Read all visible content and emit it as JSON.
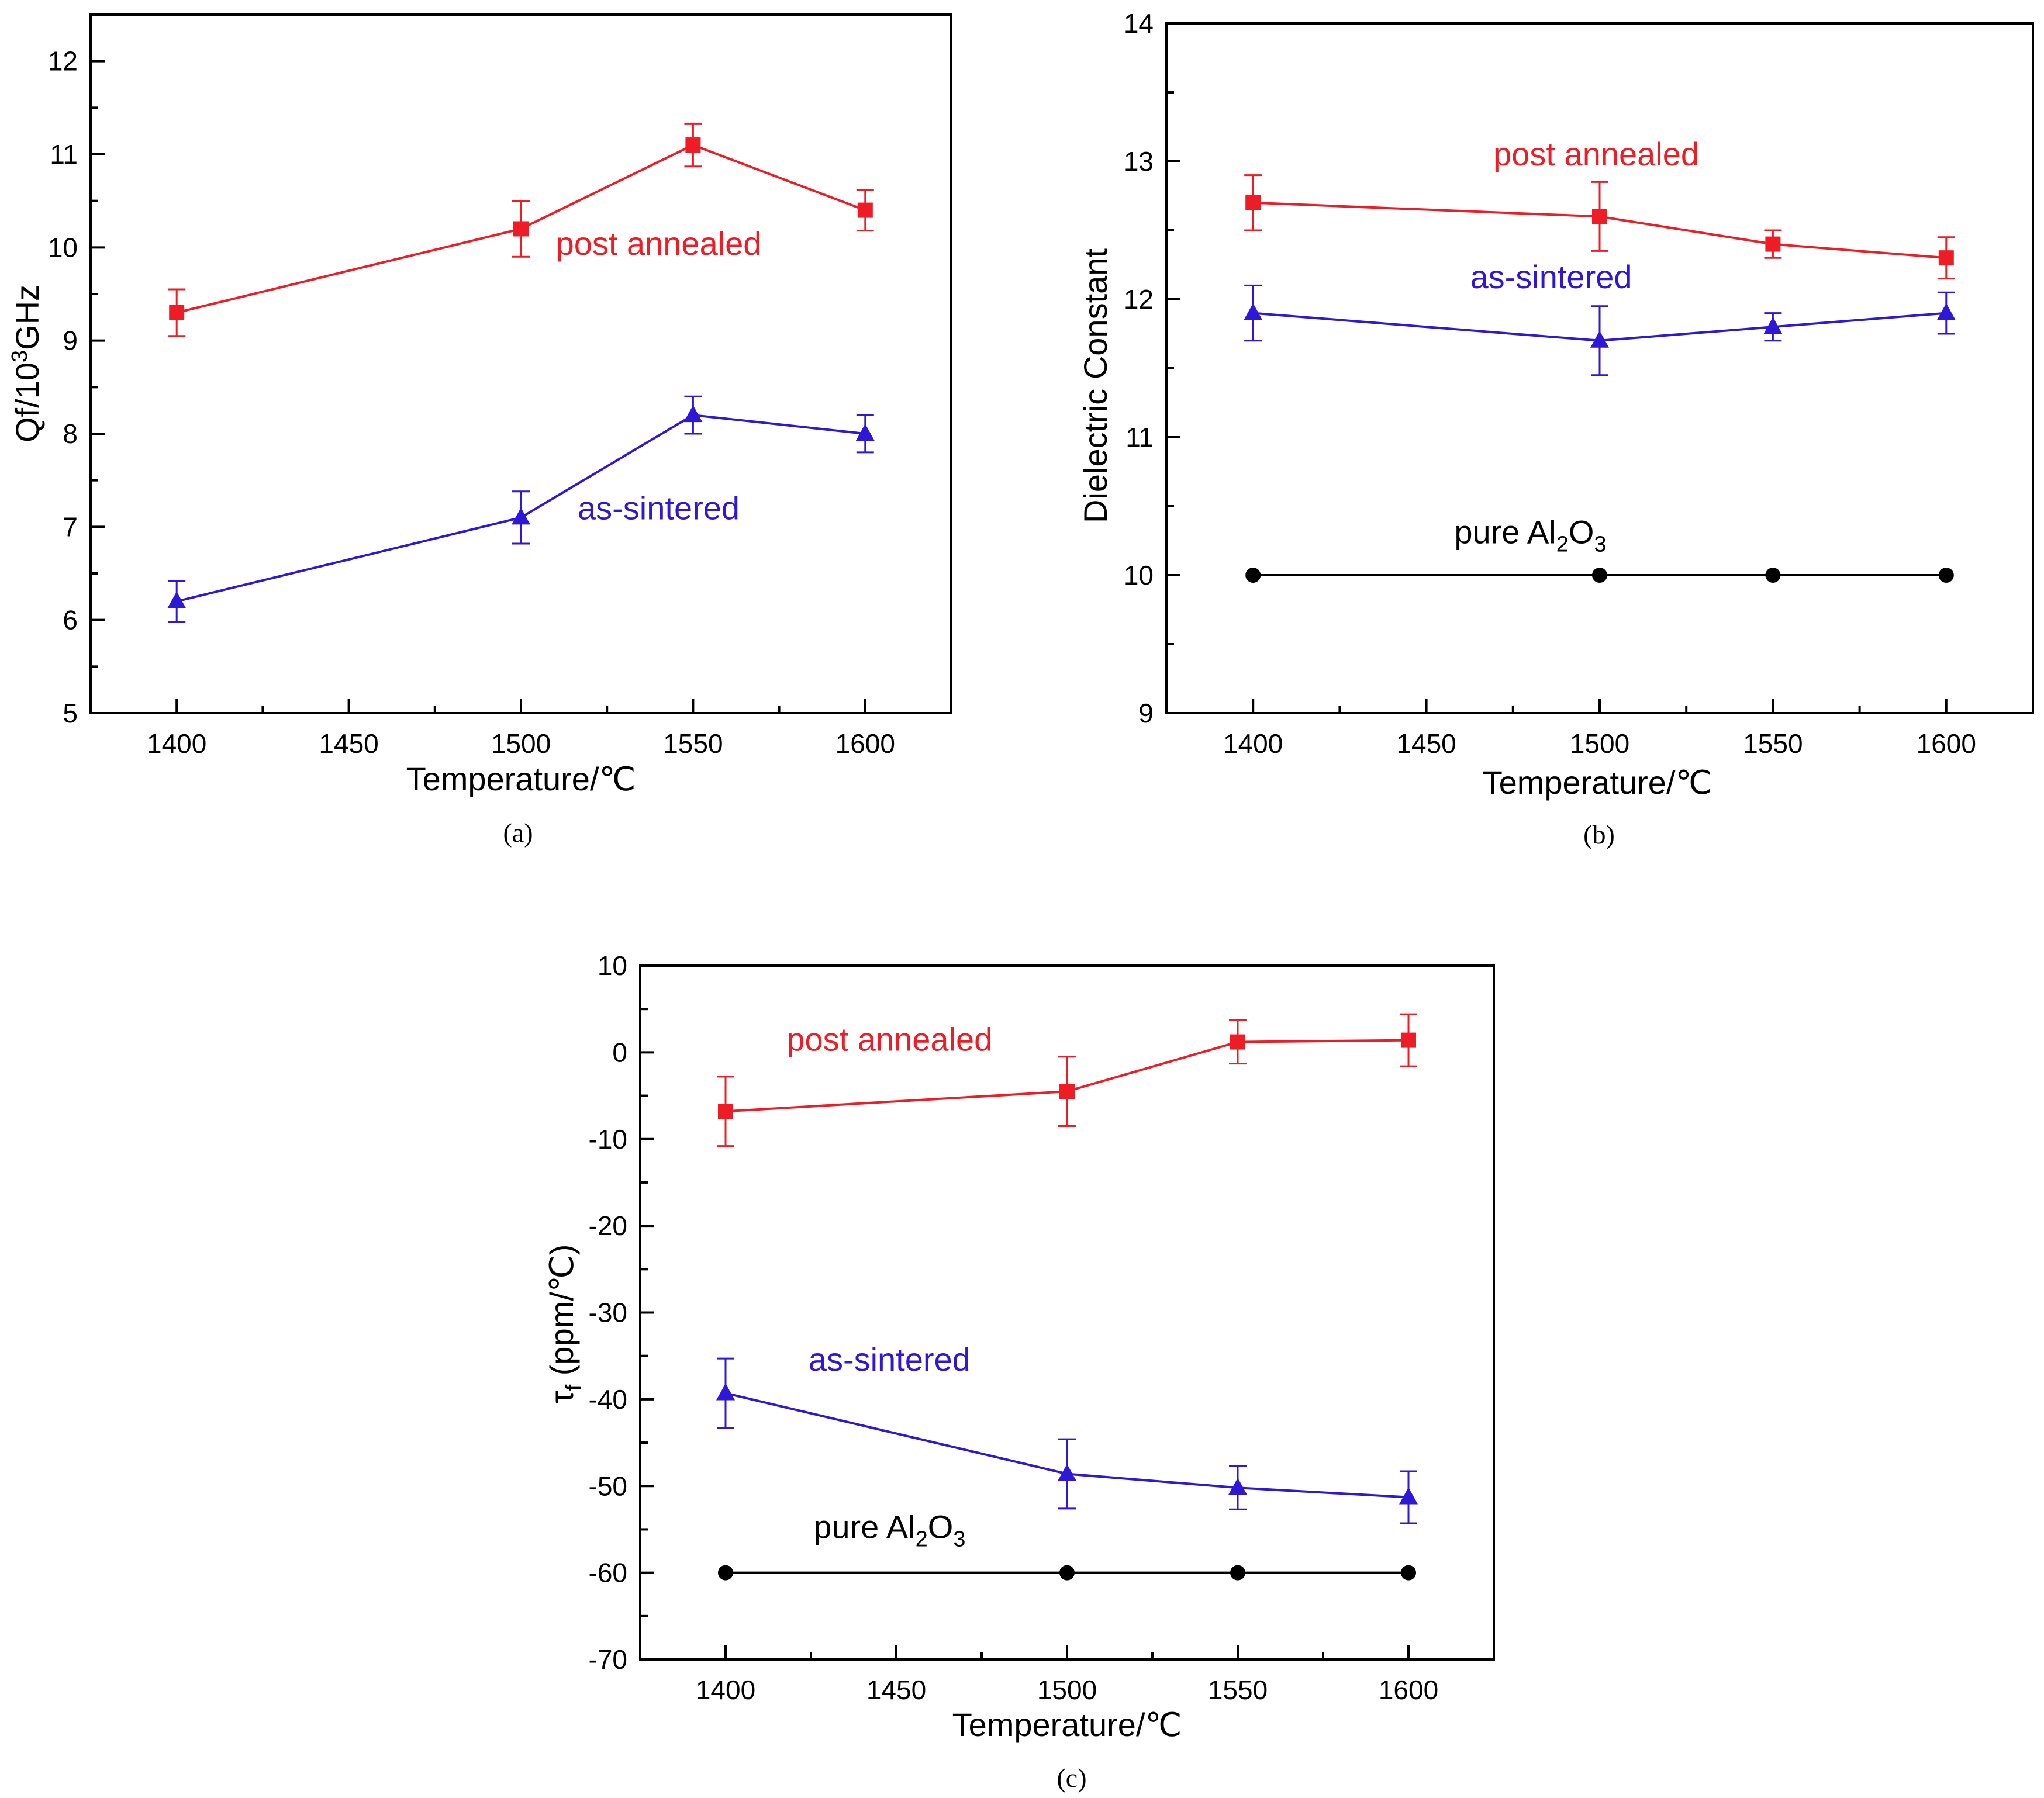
{
  "figure": {
    "charts": [
      {
        "caption": "(a)",
        "ylabel_main": "Qf/10",
        "ylabel_sup": "3",
        "ylabel_tail": "GHz",
        "xlabel": "Temperature/℃"
      },
      {
        "caption": "(b)",
        "ylabel_main": "Dielectric Constant",
        "xlabel": "Temperature/℃"
      },
      {
        "caption": "(c)",
        "ylabel_main": "τ",
        "ylabel_sub": "f",
        "ylabel_tail": " (ppm/℃)",
        "xlabel": "Temperature/℃"
      }
    ]
  },
  "chart_data": [
    {
      "type": "line",
      "panel": "(a)",
      "title": "",
      "xlabel": "Temperature/℃",
      "ylabel": "Qf/10^3GHz",
      "xlim": [
        1375,
        1625
      ],
      "ylim": [
        5,
        12.5
      ],
      "xticks": [
        1400,
        1450,
        1500,
        1550,
        1600
      ],
      "yticks": [
        5,
        6,
        7,
        8,
        9,
        10,
        11,
        12
      ],
      "x": [
        1400,
        1500,
        1550,
        1600
      ],
      "series": [
        {
          "name": "post annealed",
          "color": "#ee1c25",
          "marker": "square",
          "values": [
            9.3,
            10.2,
            11.1,
            10.4
          ],
          "errors": [
            0.25,
            0.3,
            0.23,
            0.22
          ],
          "label": {
            "text": "post annealed",
            "x": 1540,
            "y": 9.92
          }
        },
        {
          "name": "as-sintered",
          "color": "#2e17d6",
          "marker": "triangle",
          "values": [
            6.2,
            7.1,
            8.2,
            8.0
          ],
          "errors": [
            0.22,
            0.28,
            0.2,
            0.2
          ],
          "label": {
            "text": "as-sintered",
            "x": 1540,
            "y": 7.08
          }
        }
      ]
    },
    {
      "type": "line",
      "panel": "(b)",
      "title": "",
      "xlabel": "Temperature/℃",
      "ylabel": "Dielectric Constant",
      "xlim": [
        1375,
        1625
      ],
      "ylim": [
        9,
        14
      ],
      "xticks": [
        1400,
        1450,
        1500,
        1550,
        1600
      ],
      "yticks": [
        9,
        10,
        11,
        12,
        13,
        14
      ],
      "x": [
        1400,
        1500,
        1550,
        1600
      ],
      "series": [
        {
          "name": "post annealed",
          "color": "#ee1c25",
          "marker": "square",
          "values": [
            12.7,
            12.6,
            12.4,
            12.3
          ],
          "errors": [
            0.2,
            0.25,
            0.1,
            0.15
          ],
          "label": {
            "text": "post annealed",
            "x": 1499,
            "y": 12.97
          }
        },
        {
          "name": "as-sintered",
          "color": "#2e17d6",
          "marker": "triangle",
          "values": [
            11.9,
            11.7,
            11.8,
            11.9
          ],
          "errors": [
            0.2,
            0.25,
            0.1,
            0.15
          ],
          "label": {
            "text": "as-sintered",
            "x": 1486,
            "y": 12.08
          }
        },
        {
          "name": "pure Al2O3",
          "color": "#000000",
          "marker": "circle",
          "values": [
            10,
            10,
            10,
            10
          ],
          "errors": null,
          "label": {
            "text": "pure Al",
            "sub1": "2",
            "mid": "O",
            "sub2": "3",
            "x": 1480,
            "y": 10.23
          }
        }
      ]
    },
    {
      "type": "line",
      "panel": "(c)",
      "title": "",
      "xlabel": "Temperature/℃",
      "ylabel": "τf (ppm/℃)",
      "xlim": [
        1375,
        1625
      ],
      "ylim": [
        -70,
        10
      ],
      "xticks": [
        1400,
        1450,
        1500,
        1550,
        1600
      ],
      "yticks": [
        -70,
        -60,
        -50,
        -40,
        -30,
        -20,
        -10,
        0,
        10
      ],
      "x": [
        1400,
        1500,
        1550,
        1600
      ],
      "series": [
        {
          "name": "post annealed",
          "color": "#ee1c25",
          "marker": "square",
          "values": [
            -6.8,
            -4.5,
            1.2,
            1.4
          ],
          "errors": [
            4.0,
            4.0,
            2.5,
            3.0
          ],
          "label": {
            "text": "post annealed",
            "x": 1448,
            "y": 0.2
          }
        },
        {
          "name": "as-sintered",
          "color": "#2e17d6",
          "marker": "triangle",
          "values": [
            -39.3,
            -48.6,
            -50.2,
            -51.3
          ],
          "errors": [
            4.0,
            4.0,
            2.5,
            3.0
          ],
          "label": {
            "text": "as-sintered",
            "x": 1448,
            "y": -36.7
          }
        },
        {
          "name": "pure Al2O3",
          "color": "#000000",
          "marker": "circle",
          "values": [
            -60,
            -60,
            -60,
            -60
          ],
          "errors": null,
          "label": {
            "text": "pure Al",
            "sub1": "2",
            "mid": "O",
            "sub2": "3",
            "x": 1448,
            "y": -56.0
          }
        }
      ]
    }
  ]
}
